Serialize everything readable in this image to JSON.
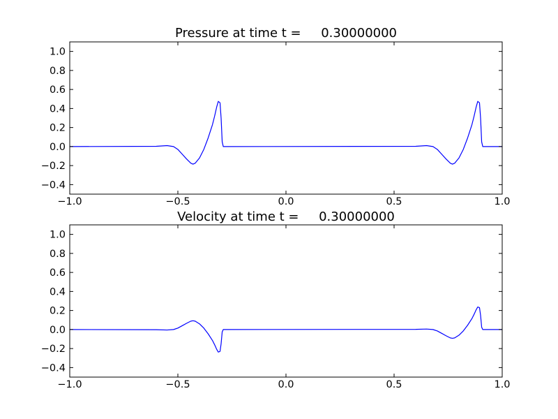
{
  "chart_data": [
    {
      "type": "line",
      "title": "Pressure at time t =     0.30000000",
      "xlabel": "",
      "ylabel": "",
      "xlim": [
        -1.0,
        1.0
      ],
      "ylim": [
        -0.5,
        1.1
      ],
      "xticks": [
        "−1.0",
        "−0.5",
        "0.0",
        "0.5",
        "1.0"
      ],
      "xtick_values": [
        -1.0,
        -0.5,
        0.0,
        0.5,
        1.0
      ],
      "yticks": [
        "−0.4",
        "−0.2",
        "0.0",
        "0.2",
        "0.4",
        "0.6",
        "0.8",
        "1.0"
      ],
      "ytick_values": [
        -0.4,
        -0.2,
        0.0,
        0.2,
        0.4,
        0.6,
        0.8,
        1.0
      ],
      "grid": false,
      "color": "#0000ff",
      "x": [
        -1,
        -0.6,
        -0.55,
        -0.52,
        -0.5,
        -0.48,
        -0.46,
        -0.44,
        -0.43,
        -0.42,
        -0.4,
        -0.38,
        -0.36,
        -0.34,
        -0.33,
        -0.32,
        -0.313,
        -0.305,
        -0.3,
        -0.295,
        -0.29,
        0.6,
        0.65,
        0.68,
        0.7,
        0.72,
        0.74,
        0.76,
        0.77,
        0.78,
        0.8,
        0.82,
        0.84,
        0.86,
        0.87,
        0.88,
        0.887,
        0.895,
        0.9,
        0.905,
        0.91,
        1.0
      ],
      "y": [
        0,
        0.003,
        0.01,
        0,
        -0.03,
        -0.08,
        -0.13,
        -0.175,
        -0.185,
        -0.175,
        -0.12,
        -0.03,
        0.09,
        0.23,
        0.32,
        0.42,
        0.475,
        0.46,
        0.3,
        0.05,
        0,
        0.003,
        0.01,
        0,
        -0.03,
        -0.08,
        -0.13,
        -0.175,
        -0.185,
        -0.175,
        -0.12,
        -0.03,
        0.09,
        0.23,
        0.32,
        0.42,
        0.475,
        0.46,
        0.3,
        0.05,
        0,
        0
      ]
    },
    {
      "type": "line",
      "title": "Velocity at time t =     0.30000000",
      "xlabel": "",
      "ylabel": "",
      "xlim": [
        -1.0,
        1.0
      ],
      "ylim": [
        -0.5,
        1.1
      ],
      "xticks": [
        "−1.0",
        "−0.5",
        "0.0",
        "0.5",
        "1.0"
      ],
      "xtick_values": [
        -1.0,
        -0.5,
        0.0,
        0.5,
        1.0
      ],
      "yticks": [
        "−0.4",
        "−0.2",
        "0.0",
        "0.2",
        "0.4",
        "0.6",
        "0.8",
        "1.0"
      ],
      "ytick_values": [
        -0.4,
        -0.2,
        0.0,
        0.2,
        0.4,
        0.6,
        0.8,
        1.0
      ],
      "grid": false,
      "color": "#0000ff",
      "x": [
        -1,
        -0.6,
        -0.55,
        -0.52,
        -0.5,
        -0.48,
        -0.46,
        -0.44,
        -0.43,
        -0.42,
        -0.4,
        -0.38,
        -0.36,
        -0.34,
        -0.33,
        -0.32,
        -0.313,
        -0.305,
        -0.3,
        -0.295,
        -0.29,
        0.6,
        0.65,
        0.68,
        0.7,
        0.72,
        0.74,
        0.76,
        0.77,
        0.78,
        0.8,
        0.82,
        0.84,
        0.86,
        0.87,
        0.88,
        0.887,
        0.895,
        0.9,
        0.905,
        0.91,
        1.0
      ],
      "y": [
        0,
        -0.002,
        -0.005,
        0,
        0.015,
        0.04,
        0.065,
        0.088,
        0.092,
        0.088,
        0.06,
        0.015,
        -0.045,
        -0.115,
        -0.16,
        -0.21,
        -0.237,
        -0.23,
        -0.15,
        -0.025,
        0,
        0.002,
        0.005,
        0,
        -0.015,
        -0.04,
        -0.065,
        -0.088,
        -0.092,
        -0.088,
        -0.06,
        -0.015,
        0.045,
        0.115,
        0.16,
        0.21,
        0.237,
        0.23,
        0.15,
        0.025,
        0,
        0
      ]
    }
  ]
}
